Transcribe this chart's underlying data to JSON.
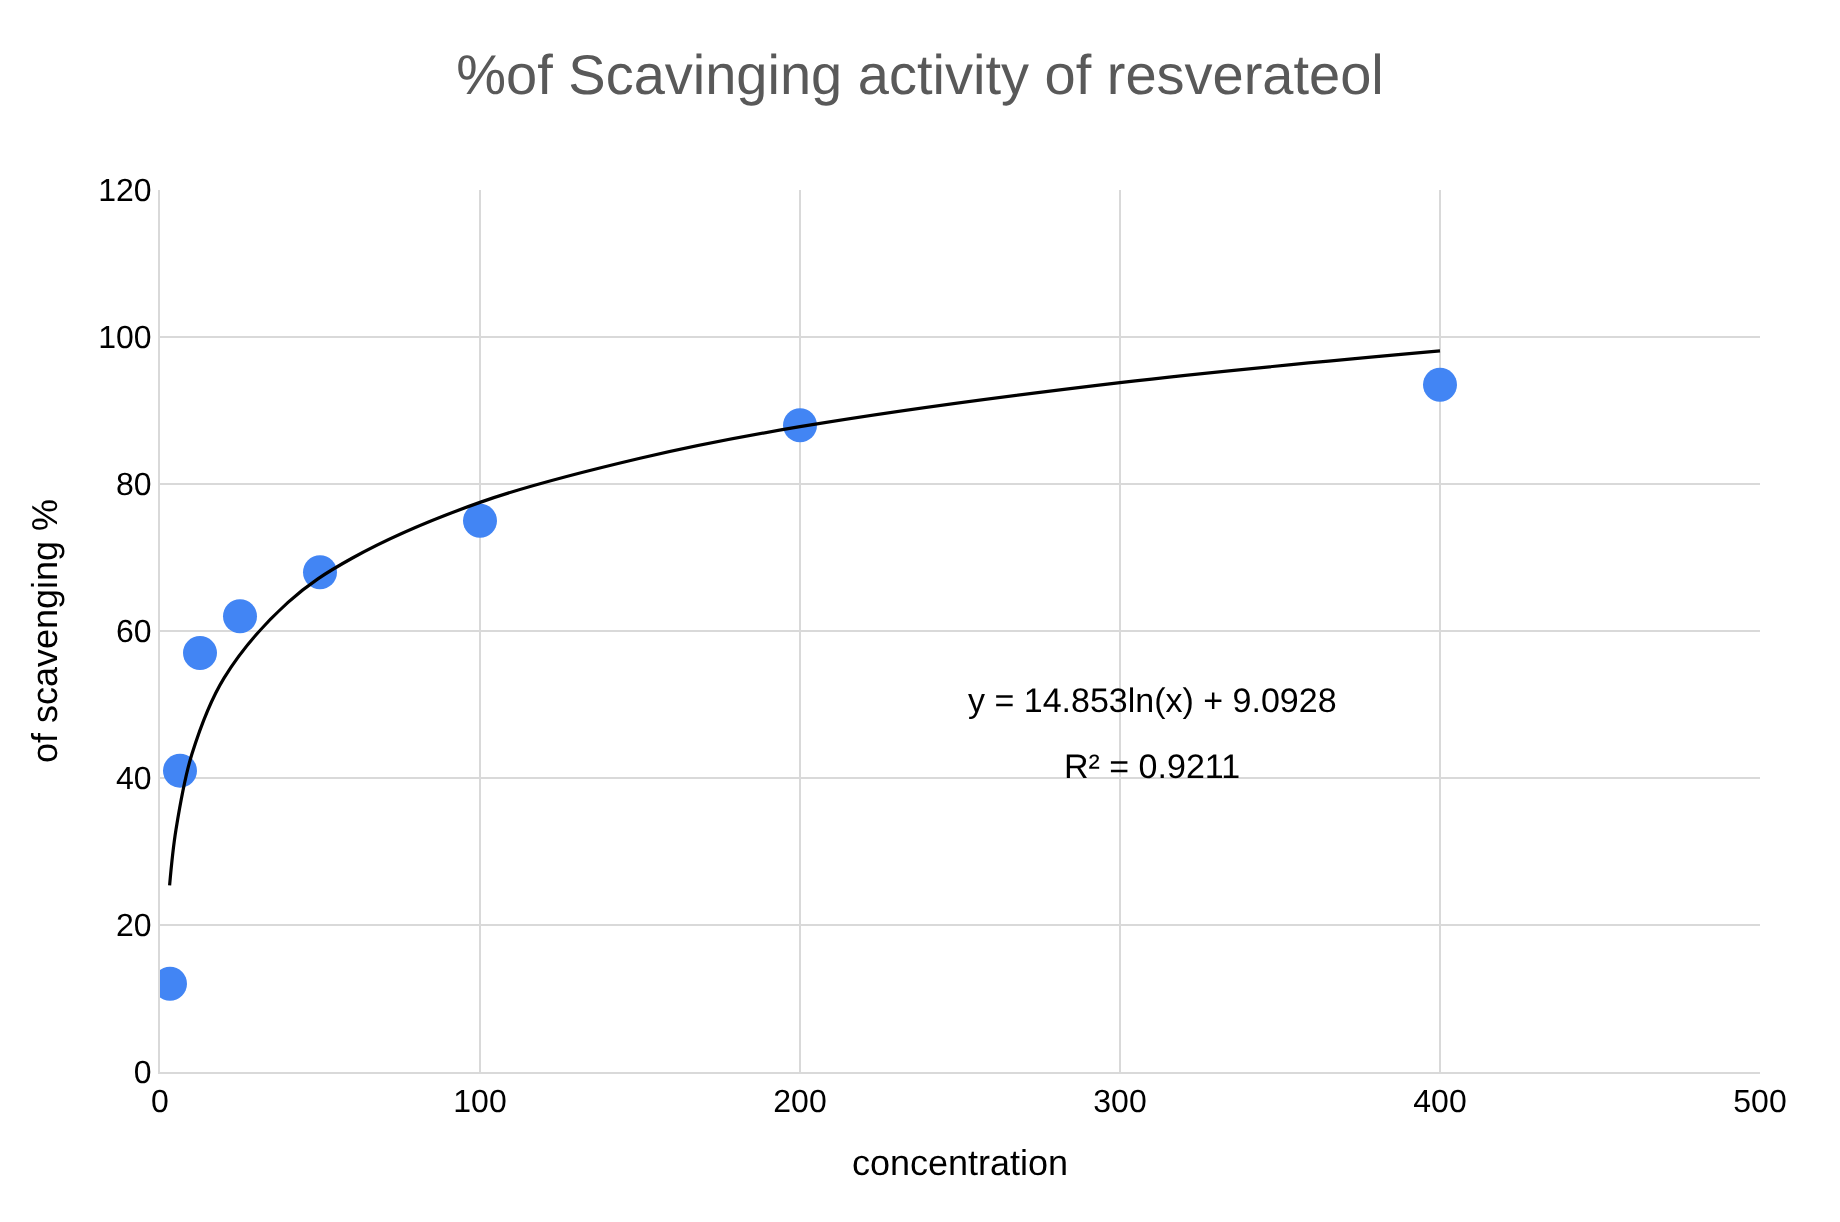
{
  "chart_data": {
    "type": "scatter",
    "title": "%of Scavinging activity of resverateol",
    "xlabel": "concentration",
    "ylabel": "of scavenging %",
    "xlim": [
      0,
      500
    ],
    "xticks": [
      0,
      100,
      200,
      300,
      400,
      500
    ],
    "ylim": [
      0,
      120
    ],
    "yticks": [
      0,
      20,
      40,
      60,
      80,
      100,
      120
    ],
    "grid": true,
    "marker": "circle",
    "series": [
      {
        "color": "#4285f4",
        "x": [
          3.125,
          6.25,
          12.5,
          25,
          50,
          100,
          200,
          400
        ],
        "values": [
          12,
          41,
          57,
          62,
          68,
          75,
          88,
          93.5
        ]
      },
      {
        "type": "line",
        "color": "#000000",
        "marker": "none",
        "line_style": "solid",
        "x": [
          3,
          5,
          10,
          20,
          40,
          60,
          100,
          150,
          200,
          300,
          400
        ],
        "values": [
          25.4,
          33.0,
          43.3,
          53.6,
          63.9,
          69.9,
          77.5,
          83.5,
          87.8,
          93.8,
          98.1
        ]
      }
    ],
    "annotations": [
      "y = 14.853ln(x) + 9.0928",
      "R² = 0.9211"
    ]
  }
}
